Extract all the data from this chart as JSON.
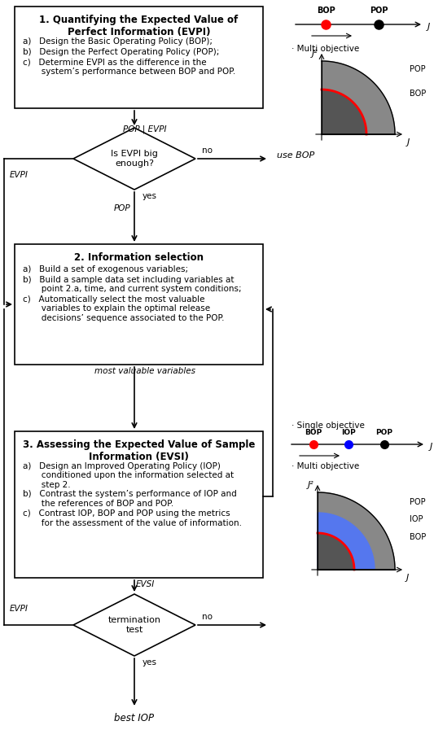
{
  "fig_width": 5.33,
  "fig_height": 9.13,
  "bg_color": "#ffffff",
  "box1": {
    "title": "1. Quantifying the Expected Value of\nPerfect Information (EVPI)",
    "lines": [
      "a)   Design the Basic Operating Policy (BOP);",
      "b)   Design the Perfect Operating Policy (POP);",
      "c)   Determine EVPI as the difference in the\n       system’s performance between BOP and POP."
    ]
  },
  "box2": {
    "title": "2. Information selection",
    "lines": [
      "a)   Build a set of exogenous variables;",
      "b)   Build a sample data set including variables at\n       point 2.a, time, and current system conditions;",
      "c)   Automatically select the most valuable\n       variables to explain the optimal release\n       decisions’ sequence associated to the POP."
    ]
  },
  "box3": {
    "title": "3. Assessing the Expected Value of Sample\nInformation (EVSI)",
    "lines": [
      "a)   Design an Improved Operating Policy (IOP)\n       conditioned upon the information selected at\n       step 2.",
      "b)   Contrast the system’s performance of IOP and\n       the references of BOP and POP.",
      "c)   Contrast IOP, BOP and POP using the metrics\n       for the assessment of the value of information."
    ]
  }
}
